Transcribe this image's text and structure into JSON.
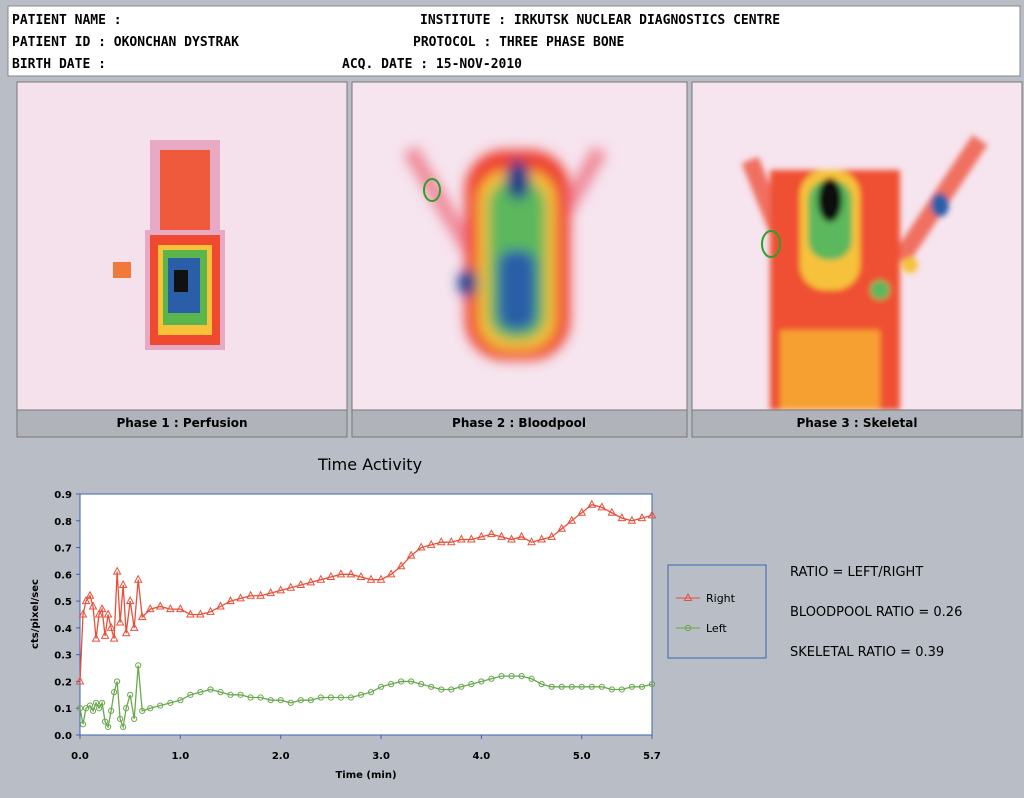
{
  "header": {
    "patient_name": "PATIENT NAME :",
    "patient_id": "PATIENT ID  : OKONCHAN DYSTRAK",
    "birth_date": "BIRTH DATE  :",
    "institute": "INSTITUTE : IRKUTSK NUCLEAR DIAGNOSTICS CENTRE",
    "protocol": "PROTOCOL  : THREE PHASE BONE",
    "acq_date": "ACQ. DATE : 15-NOV-2010"
  },
  "panels": [
    "Phase 1 : Perfusion",
    "Phase 2 : Bloodpool",
    "Phase 3 : Skeletal"
  ],
  "chart_data": {
    "type": "line",
    "title": "Time Activity",
    "x_label": "Time (min)",
    "y_label": "cts/pixel/sec",
    "x": [
      0.0,
      0.03,
      0.06,
      0.1,
      0.13,
      0.16,
      0.19,
      0.22,
      0.25,
      0.28,
      0.31,
      0.34,
      0.37,
      0.4,
      0.43,
      0.46,
      0.5,
      0.54,
      0.58,
      0.62,
      0.7,
      0.8,
      0.9,
      1.0,
      1.1,
      1.2,
      1.3,
      1.4,
      1.5,
      1.6,
      1.7,
      1.8,
      1.9,
      2.0,
      2.1,
      2.2,
      2.3,
      2.4,
      2.5,
      2.6,
      2.7,
      2.8,
      2.9,
      3.0,
      3.1,
      3.2,
      3.3,
      3.4,
      3.5,
      3.6,
      3.7,
      3.8,
      3.9,
      4.0,
      4.1,
      4.2,
      4.3,
      4.4,
      4.5,
      4.6,
      4.7,
      4.8,
      4.9,
      5.0,
      5.1,
      5.2,
      5.3,
      5.4,
      5.5,
      5.6,
      5.7
    ],
    "series": [
      {
        "name": "Right",
        "color": "#e8503a",
        "marker": "triangle",
        "values": [
          0.2,
          0.45,
          0.5,
          0.52,
          0.48,
          0.36,
          0.45,
          0.47,
          0.37,
          0.45,
          0.4,
          0.36,
          0.61,
          0.42,
          0.56,
          0.38,
          0.5,
          0.4,
          0.58,
          0.44,
          0.47,
          0.48,
          0.47,
          0.47,
          0.45,
          0.45,
          0.46,
          0.48,
          0.5,
          0.51,
          0.52,
          0.52,
          0.53,
          0.54,
          0.55,
          0.56,
          0.57,
          0.58,
          0.59,
          0.6,
          0.6,
          0.59,
          0.58,
          0.58,
          0.6,
          0.63,
          0.67,
          0.7,
          0.71,
          0.72,
          0.72,
          0.73,
          0.73,
          0.74,
          0.75,
          0.74,
          0.73,
          0.74,
          0.72,
          0.73,
          0.74,
          0.77,
          0.8,
          0.83,
          0.86,
          0.85,
          0.83,
          0.81,
          0.8,
          0.81,
          0.82
        ]
      },
      {
        "name": "Left",
        "color": "#6aa84f",
        "marker": "circle",
        "values": [
          0.1,
          0.04,
          0.1,
          0.11,
          0.09,
          0.12,
          0.1,
          0.12,
          0.05,
          0.03,
          0.09,
          0.16,
          0.2,
          0.06,
          0.03,
          0.1,
          0.15,
          0.06,
          0.26,
          0.09,
          0.1,
          0.11,
          0.12,
          0.13,
          0.15,
          0.16,
          0.17,
          0.16,
          0.15,
          0.15,
          0.14,
          0.14,
          0.13,
          0.13,
          0.12,
          0.13,
          0.13,
          0.14,
          0.14,
          0.14,
          0.14,
          0.15,
          0.16,
          0.18,
          0.19,
          0.2,
          0.2,
          0.19,
          0.18,
          0.17,
          0.17,
          0.18,
          0.19,
          0.2,
          0.21,
          0.22,
          0.22,
          0.22,
          0.21,
          0.19,
          0.18,
          0.18,
          0.18,
          0.18,
          0.18,
          0.18,
          0.17,
          0.17,
          0.18,
          0.18,
          0.19
        ]
      }
    ],
    "xlim": [
      0,
      5.7
    ],
    "xticks": [
      {
        "value": 0,
        "label": "0.0"
      },
      {
        "value": 1,
        "label": "1.0"
      },
      {
        "value": 2,
        "label": "2.0"
      },
      {
        "value": 3,
        "label": "3.0"
      },
      {
        "value": 4,
        "label": "4.0"
      },
      {
        "value": 5,
        "label": "5.0"
      },
      5.7
    ],
    "ylim": [
      0,
      0.9
    ],
    "yticks": [
      {
        "value": 0,
        "label": "0.0"
      },
      0.1,
      0.2,
      0.3,
      0.4,
      0.5,
      0.6,
      0.7,
      0.8,
      0.9
    ],
    "grid": false
  },
  "ratios": [
    "RATIO = LEFT/RIGHT",
    "BLOODPOOL RATIO = 0.26",
    "SKELETAL  RATIO = 0.39"
  ]
}
